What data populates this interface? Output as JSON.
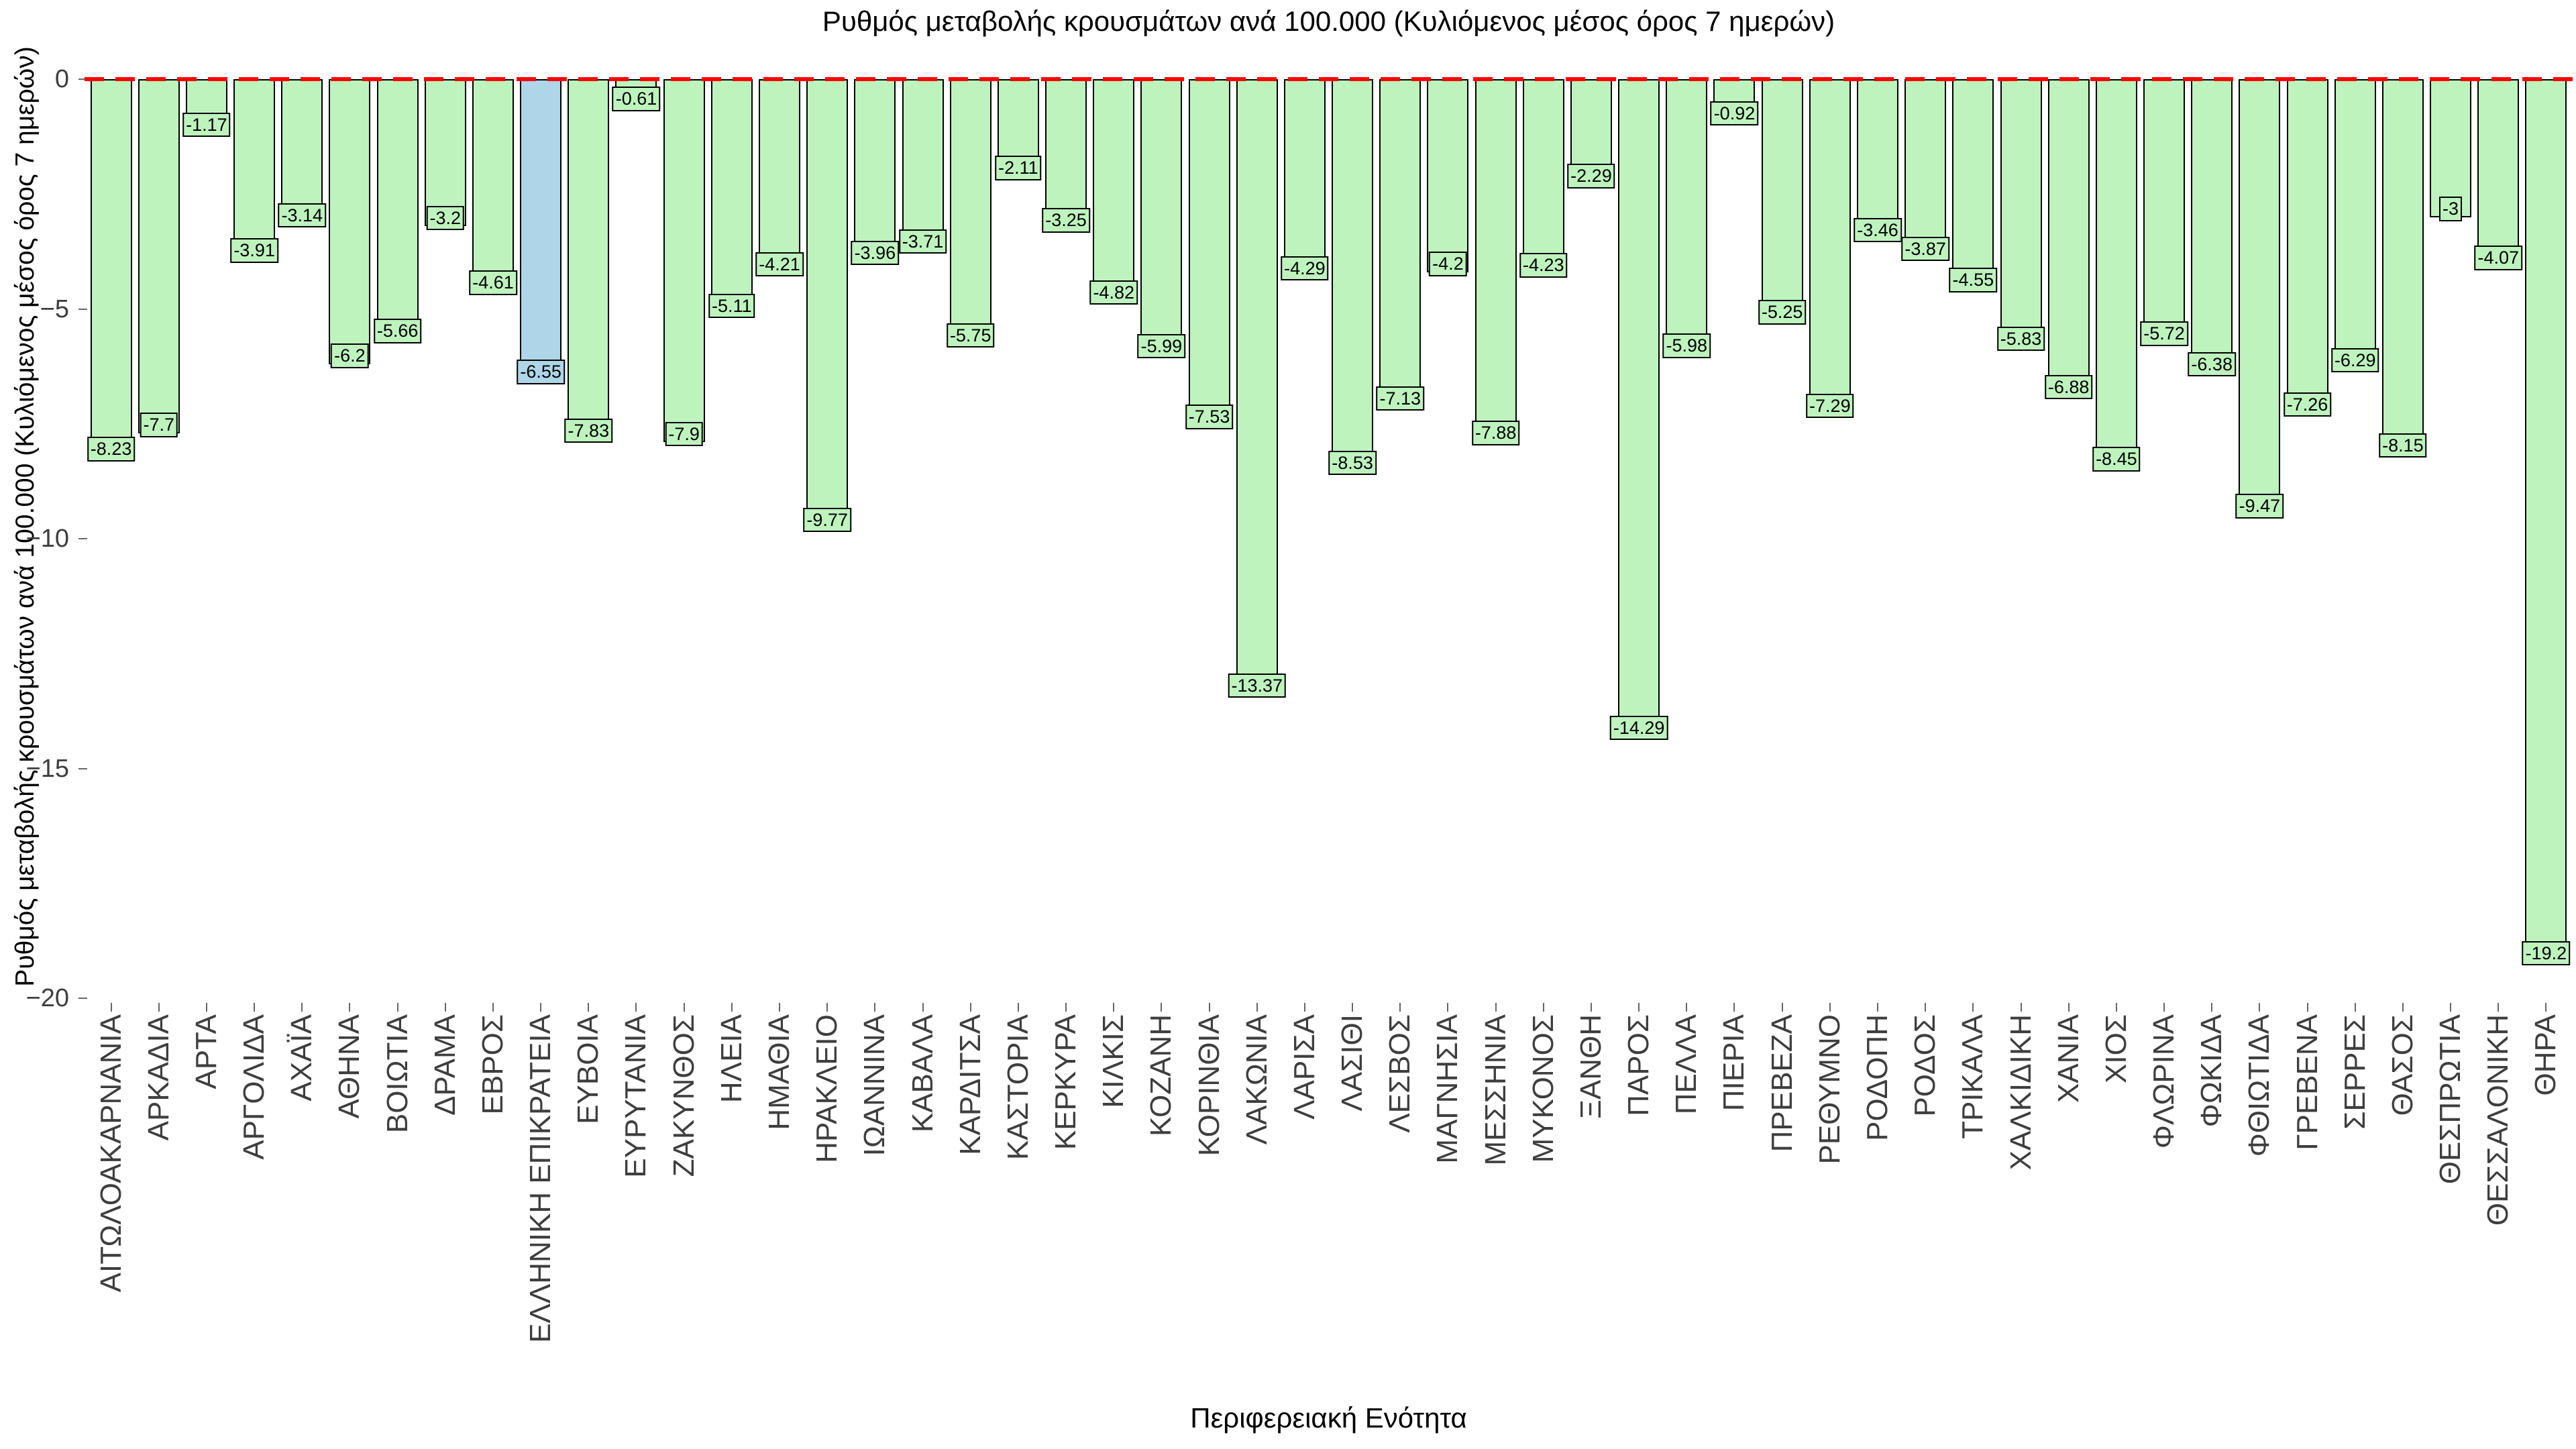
{
  "chart_data": {
    "type": "bar",
    "title": "Ρυθμός μεταβολής κρουσμάτων ανά 100.000 (Κυλιόμενος μέσος όρος 7 ημερών)",
    "ylabel": "Ρυθμός μεταβολής κρουσμάτων ανά 100.000 (Κυλιόμενος μέσος όρος 7 ημερών)",
    "xlabel": "Περιφερειακή Ενότητα",
    "ylim": [
      -20.1,
      0
    ],
    "grid": false,
    "legend": null,
    "yticks": [
      0,
      -5,
      -10,
      -15,
      -20
    ],
    "ytick_labels": [
      "0",
      "−5",
      "−10",
      "−15",
      "−20"
    ],
    "zero_line_color": "#ff0000",
    "colors": {
      "bar": "#bef3be",
      "highlight": "#aed6e8",
      "bar_edge": "#000000"
    },
    "highlight_index": 9,
    "highlight_category": "ΕΛΛΗΝΙΚΗ ΕΠΙΚΡΑΤΕΙΑ",
    "categories": [
      "ΑΙΤΩΛΟΑΚΑΡΝΑΝΙΑ",
      "ΑΡΚΑΔΙΑ",
      "ΑΡΤΑ",
      "ΑΡΓΟΛΙΔΑ",
      "ΑΧΑΪΑ",
      "ΑΘΗΝΑ",
      "ΒΟΙΩΤΙΑ",
      "ΔΡΑΜΑ",
      "ΕΒΡΟΣ",
      "ΕΛΛΗΝΙΚΗ ΕΠΙΚΡΑΤΕΙΑ",
      "ΕΥΒΟΙΑ",
      "ΕΥΡΥΤΑΝΙΑ",
      "ΖΑΚΥΝΘΟΣ",
      "ΗΛΕΙΑ",
      "ΗΜΑΘΙΑ",
      "ΗΡΑΚΛΕΙΟ",
      "ΙΩΑΝΝΙΝΑ",
      "ΚΑΒΑΛΑ",
      "ΚΑΡΔΙΤΣΑ",
      "ΚΑΣΤΟΡΙΑ",
      "ΚΕΡΚΥΡΑ",
      "ΚΙΛΚΙΣ",
      "ΚΟΖΑΝΗ",
      "ΚΟΡΙΝΘΙΑ",
      "ΛΑΚΩΝΙΑ",
      "ΛΑΡΙΣΑ",
      "ΛΑΣΙΘΙ",
      "ΛΕΣΒΟΣ",
      "ΜΑΓΝΗΣΙΑ",
      "ΜΕΣΣΗΝΙΑ",
      "ΜΥΚΟΝΟΣ",
      "ΞΑΝΘΗ",
      "ΠΑΡΟΣ",
      "ΠΕΛΛΑ",
      "ΠΙΕΡΙΑ",
      "ΠΡΕΒΕΖΑ",
      "ΡΕΘΥΜΝΟ",
      "ΡΟΔΟΠΗ",
      "ΡΟΔΟΣ",
      "ΤΡΙΚΑΛΑ",
      "ΧΑΛΚΙΔΙΚΗ",
      "ΧΑΝΙΑ",
      "ΧΙΟΣ",
      "ΦΛΩΡΙΝΑ",
      "ΦΩΚΙΔΑ",
      "ΦΘΙΩΤΙΔΑ",
      "ΓΡΕΒΕΝΑ",
      "ΣΕΡΡΕΣ",
      "ΘΑΣΟΣ",
      "ΘΕΣΠΡΩΤΙΑ",
      "ΘΕΣΣΑΛΟΝΙΚΗ",
      "ΘΗΡΑ"
    ],
    "values": [
      -8.23,
      -7.7,
      -1.17,
      -3.91,
      -3.14,
      -6.2,
      -5.66,
      -3.2,
      -4.61,
      -6.55,
      -7.83,
      -0.61,
      -7.9,
      -5.11,
      -4.21,
      -9.77,
      -3.96,
      -3.71,
      -5.75,
      -2.11,
      -3.25,
      -4.82,
      -5.99,
      -7.53,
      -13.37,
      -4.29,
      -8.53,
      -7.13,
      -4.2,
      -7.88,
      -4.23,
      -2.29,
      -14.29,
      -5.98,
      -0.92,
      -5.25,
      -7.29,
      -3.46,
      -3.87,
      -4.55,
      -5.83,
      -6.88,
      -8.45,
      -5.72,
      -6.38,
      -9.47,
      -7.26,
      -6.29,
      -8.15,
      -3,
      -4.07,
      -19.2
    ]
  }
}
